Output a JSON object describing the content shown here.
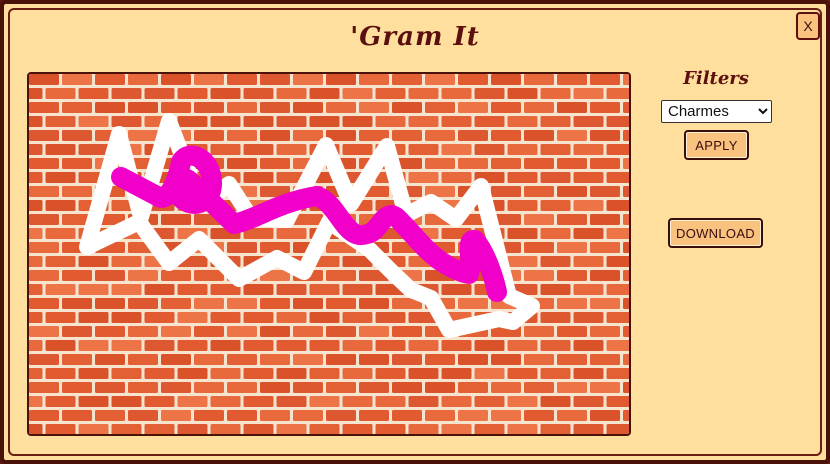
{
  "dialog": {
    "title": "'Gram It",
    "close_label": "X"
  },
  "sidebar": {
    "filters_label": "Filters",
    "selected_filter": "Charmes",
    "apply_label": "APPLY",
    "download_label": "DOWNLOAD"
  },
  "canvas": {
    "background_color": "#e8643a",
    "brick_color": "#e15a30",
    "mortar_color": "#f6e4cf",
    "strokes": [
      {
        "name": "white-zigzag-stroke",
        "color": "#ffffff"
      },
      {
        "name": "magenta-squiggle-stroke",
        "color": "#f000c8"
      }
    ]
  },
  "colors": {
    "panel_bg": "#fedf9e",
    "border": "#4a1209",
    "title_text": "#5b0f0f",
    "button_bg": "#f9c27f"
  }
}
